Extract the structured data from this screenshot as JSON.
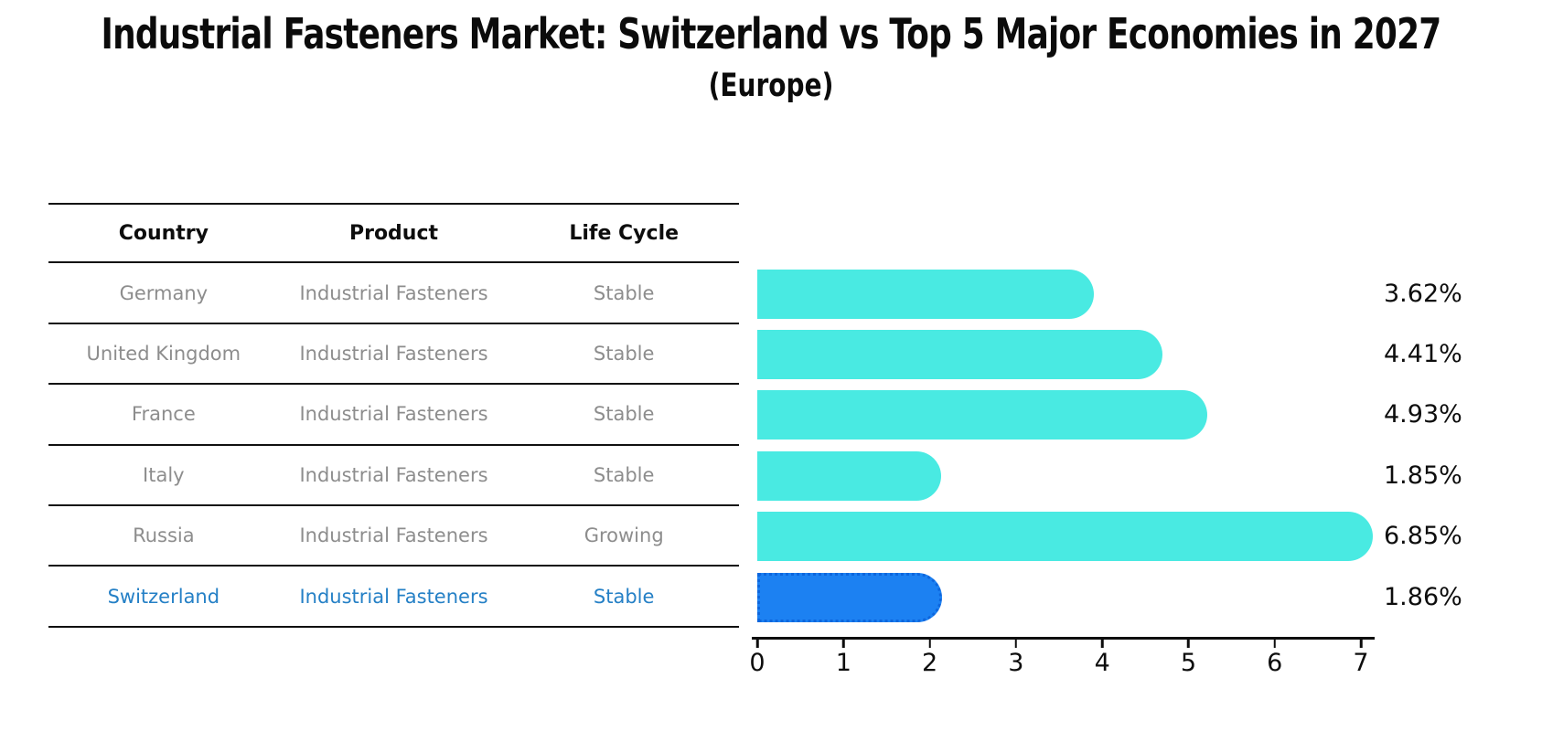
{
  "chart_data": {
    "type": "bar",
    "orientation": "horizontal",
    "title": "Industrial Fasteners Market: Switzerland vs Top 5 Major Economies in 2027",
    "subtitle": "(Europe)",
    "categories": [
      "Germany",
      "United Kingdom",
      "France",
      "Italy",
      "Russia",
      "Switzerland"
    ],
    "values": [
      3.62,
      4.41,
      4.93,
      1.85,
      6.85,
      1.86
    ],
    "value_labels": [
      "3.62%",
      "4.41%",
      "4.93%",
      "1.85%",
      "6.85%",
      "1.86%"
    ],
    "xlabel": "",
    "ylabel": "",
    "xlim": [
      0,
      7
    ],
    "x_ticks": [
      "0",
      "1",
      "2",
      "3",
      "4",
      "5",
      "6",
      "7"
    ],
    "grid": false,
    "legend": false,
    "bar_color": "#49eae2",
    "highlight_bar_color": "#1c81f2",
    "highlight_index": 5,
    "highlight_edge_style": "dotted"
  },
  "table": {
    "headers": [
      "Country",
      "Product",
      "Life Cycle"
    ],
    "rows": [
      {
        "country": "Germany",
        "product": "Industrial Fasteners",
        "life_cycle": "Stable",
        "highlighted": false
      },
      {
        "country": "United Kingdom",
        "product": "Industrial Fasteners",
        "life_cycle": "Stable",
        "highlighted": false
      },
      {
        "country": "France",
        "product": "Industrial Fasteners",
        "life_cycle": "Stable",
        "highlighted": false
      },
      {
        "country": "Italy",
        "product": "Industrial Fasteners",
        "life_cycle": "Stable",
        "highlighted": false
      },
      {
        "country": "Russia",
        "product": "Industrial Fasteners",
        "life_cycle": "Growing",
        "highlighted": false
      },
      {
        "country": "Switzerland",
        "product": "Industrial Fasteners",
        "life_cycle": "Stable",
        "highlighted": true
      }
    ]
  },
  "colors": {
    "row_text": "#8d8d8d",
    "highlight_text": "#2580c6",
    "axis": "#0d0d0d",
    "background": "#ffffff"
  }
}
